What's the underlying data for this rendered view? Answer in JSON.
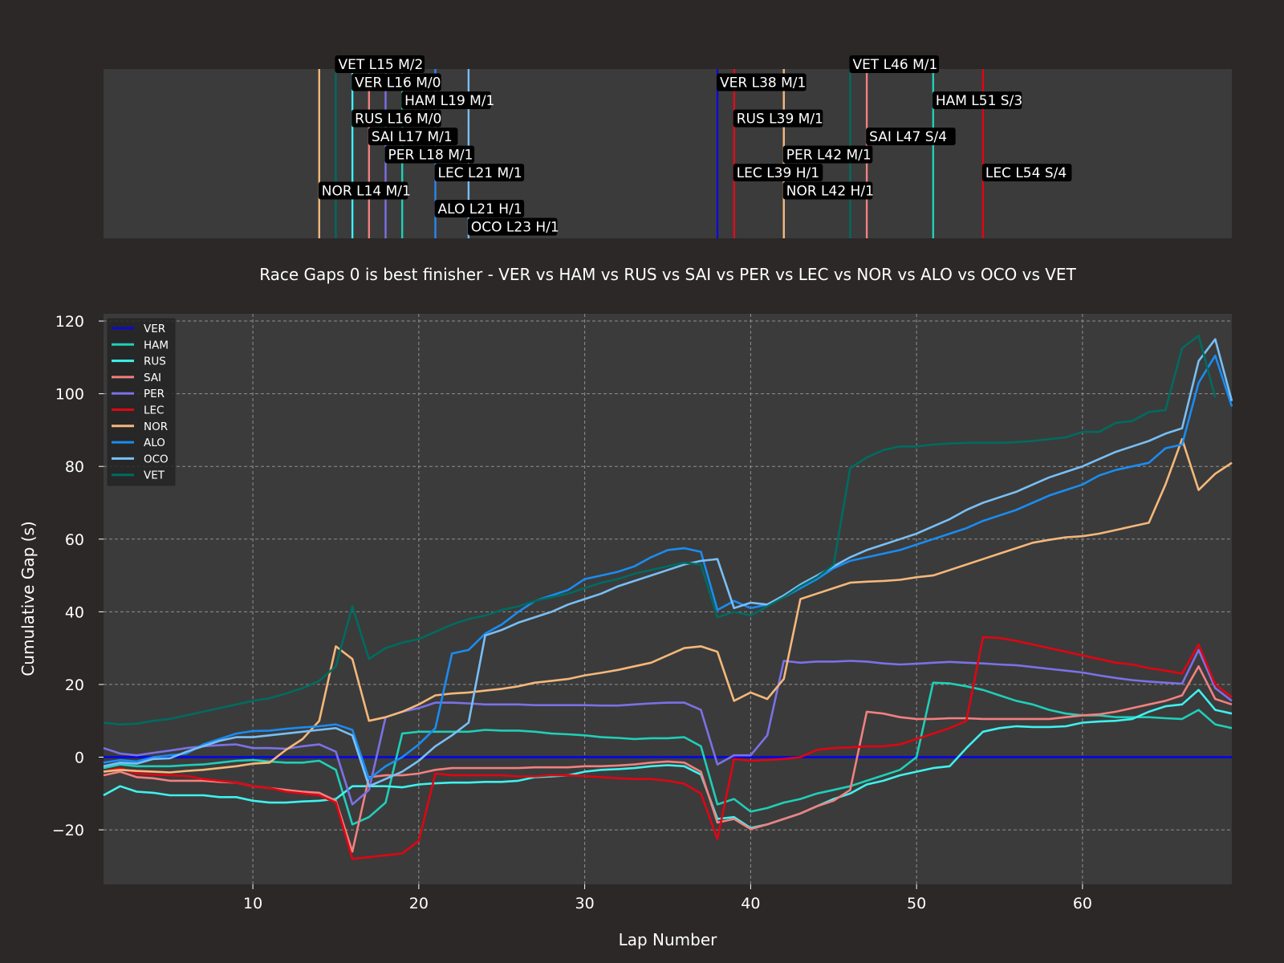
{
  "chart_data": [
    {
      "type": "timeline",
      "title": "",
      "xlim": [
        1,
        69
      ],
      "pit_stops": [
        {
          "driver": "NOR",
          "lap": 14,
          "label": "NOR L14 M/1",
          "row": 7
        },
        {
          "driver": "VET",
          "lap": 15,
          "label": "VET L15 M/2",
          "row": 0
        },
        {
          "driver": "VER",
          "lap": 16,
          "label": "VER L16 M/0",
          "row": 1
        },
        {
          "driver": "RUS",
          "lap": 16,
          "label": "RUS L16 M/0",
          "row": 3
        },
        {
          "driver": "SAI",
          "lap": 17,
          "label": "SAI L17 M/1",
          "row": 4
        },
        {
          "driver": "PER",
          "lap": 18,
          "label": "PER L18 M/1",
          "row": 5
        },
        {
          "driver": "HAM",
          "lap": 19,
          "label": "HAM L19 M/1",
          "row": 2
        },
        {
          "driver": "LEC",
          "lap": 21,
          "label": "LEC L21 M/1",
          "row": 6
        },
        {
          "driver": "ALO",
          "lap": 21,
          "label": "ALO L21 H/1",
          "row": 8
        },
        {
          "driver": "OCO",
          "lap": 23,
          "label": "OCO L23 H/1",
          "row": 9
        },
        {
          "driver": "VER",
          "lap": 38,
          "label": "VER L38 M/1",
          "row": 1
        },
        {
          "driver": "RUS",
          "lap": 39,
          "label": "RUS L39 M/1",
          "row": 3
        },
        {
          "driver": "LEC",
          "lap": 39,
          "label": "LEC L39 H/1",
          "row": 6
        },
        {
          "driver": "PER",
          "lap": 42,
          "label": "PER L42 M/1",
          "row": 5
        },
        {
          "driver": "NOR",
          "lap": 42,
          "label": "NOR L42 H/1",
          "row": 7
        },
        {
          "driver": "VET",
          "lap": 46,
          "label": "VET L46 M/1",
          "row": 0
        },
        {
          "driver": "SAI",
          "lap": 47,
          "label": "SAI L47 S/4",
          "row": 4
        },
        {
          "driver": "HAM",
          "lap": 51,
          "label": "HAM L51 S/3",
          "row": 2
        },
        {
          "driver": "LEC",
          "lap": 54,
          "label": "LEC L54 S/4",
          "row": 6
        }
      ]
    },
    {
      "type": "line",
      "title": "Race Gaps 0 is best finisher - VER vs HAM vs RUS vs SAI vs PER vs LEC vs NOR vs ALO vs OCO vs VET",
      "xlabel": "Lap Number",
      "ylabel": "Cumulative Gap (s)",
      "xlim": [
        1,
        69
      ],
      "ylim": [
        -35,
        122
      ],
      "xticks": [
        10,
        20,
        30,
        40,
        50,
        60
      ],
      "yticks": [
        -20,
        0,
        20,
        40,
        60,
        80,
        100,
        120
      ],
      "grid": true,
      "legend": "top-left",
      "series": [
        {
          "name": "VER",
          "color": "#0a0ad6",
          "values": [
            0,
            0,
            0,
            0,
            0,
            0,
            0,
            0,
            0,
            0,
            0,
            0,
            0,
            0,
            0,
            0,
            0,
            0,
            0,
            0,
            0,
            0,
            0,
            0,
            0,
            0,
            0,
            0,
            0,
            0,
            0,
            0,
            0,
            0,
            0,
            0,
            0,
            0,
            0,
            0,
            0,
            0,
            0,
            0,
            0,
            0,
            0,
            0,
            0,
            0,
            0,
            0,
            0,
            0,
            0,
            0,
            0,
            0,
            0,
            0,
            0,
            0,
            0,
            0,
            0,
            0,
            0,
            0,
            0
          ]
        },
        {
          "name": "HAM",
          "color": "#1fcfb8",
          "values": [
            -3,
            -2,
            -2.5,
            -2.5,
            -2.5,
            -2.2,
            -2,
            -1.5,
            -1,
            -0.8,
            -1.2,
            -1.5,
            -1.5,
            -1,
            -3.5,
            -18.5,
            -16.5,
            -12.5,
            6.5,
            7,
            7,
            7,
            7,
            7.5,
            7.3,
            7.3,
            7,
            6.5,
            6.3,
            6,
            5.5,
            5.3,
            5,
            5.2,
            5.2,
            5.5,
            3,
            -13,
            -11.5,
            -15,
            -14,
            -12.5,
            -11.5,
            -10,
            -9,
            -8,
            -6.5,
            -5,
            -3.5,
            0,
            20.5,
            20.3,
            19.5,
            18.5,
            17,
            15.5,
            14.5,
            13,
            12,
            11.5,
            11.5,
            11,
            11,
            11,
            10.7,
            10.5,
            13,
            9,
            8
          ]
        },
        {
          "name": "RUS",
          "color": "#3ef2ee",
          "values": [
            -10.5,
            -8,
            -9.5,
            -9.8,
            -10.5,
            -10.5,
            -10.5,
            -11,
            -11,
            -12,
            -12.5,
            -12.5,
            -12.2,
            -12,
            -11.5,
            -8,
            -8,
            -8,
            -8.3,
            -7.5,
            -7.2,
            -7,
            -7,
            -6.8,
            -6.8,
            -6.5,
            -5.5,
            -5.3,
            -5,
            -4,
            -3.5,
            -3.3,
            -3,
            -2.5,
            -2.2,
            -2.5,
            -4.8,
            -17,
            -16.5,
            -19.5,
            -18.5,
            -17,
            -15.5,
            -13.5,
            -11.5,
            -10,
            -7.5,
            -6.5,
            -5,
            -4,
            -3,
            -2.5,
            2.5,
            7,
            8,
            8.5,
            8.3,
            8.3,
            8.5,
            9.5,
            9.8,
            10,
            10.5,
            12.5,
            14,
            14.5,
            18.5,
            13,
            12
          ]
        },
        {
          "name": "SAI",
          "color": "#f28080",
          "values": [
            -5,
            -4,
            -5.5,
            -5.8,
            -6.5,
            -6.5,
            -6.5,
            -6.8,
            -7,
            -8,
            -8.5,
            -9,
            -9.5,
            -9.8,
            -12,
            -26,
            -5.5,
            -5,
            -5,
            -4.5,
            -3.5,
            -3,
            -3,
            -3,
            -3,
            -3,
            -2.8,
            -2.8,
            -2.8,
            -2.5,
            -2.5,
            -2.3,
            -2,
            -1.5,
            -1.2,
            -1.5,
            -4,
            -18,
            -17,
            -19.8,
            -18.5,
            -17,
            -15.5,
            -13.5,
            -12,
            -9,
            12.5,
            12,
            11,
            10.5,
            10.5,
            10.7,
            10.7,
            10.5,
            10.5,
            10.5,
            10.5,
            10.5,
            11,
            11.5,
            11.8,
            12.5,
            13.5,
            14.5,
            15.5,
            17,
            25,
            16,
            14.5
          ]
        },
        {
          "name": "PER",
          "color": "#7b71e6",
          "values": [
            2.5,
            1,
            0.5,
            1.2,
            1.8,
            2.5,
            3,
            3.3,
            3.5,
            2.5,
            2.5,
            2.3,
            3,
            3.5,
            1.5,
            -13,
            -9,
            11,
            12.5,
            13.5,
            15,
            15,
            14.8,
            14.5,
            14.5,
            14.5,
            14.3,
            14.3,
            14.3,
            14.3,
            14.2,
            14.2,
            14.5,
            14.8,
            15,
            15,
            13,
            -2,
            0.5,
            0.5,
            6,
            26.5,
            26,
            26.3,
            26.3,
            26.5,
            26.3,
            25.8,
            25.5,
            25.7,
            26,
            26.2,
            26,
            25.8,
            25.5,
            25.3,
            24.8,
            24.3,
            23.8,
            23.3,
            22.5,
            21.8,
            21.2,
            20.8,
            20.5,
            20.2,
            29.5,
            19,
            15.5
          ]
        },
        {
          "name": "LEC",
          "color": "#e10512",
          "values": [
            -4,
            -3,
            -4.5,
            -4.8,
            -5,
            -5.2,
            -6,
            -6.5,
            -7,
            -8,
            -8.5,
            -9.5,
            -10,
            -10.5,
            -12.5,
            -28,
            -27.5,
            -27,
            -26.5,
            -23,
            -4.5,
            -5,
            -5,
            -5,
            -5,
            -5.3,
            -5.3,
            -5,
            -5,
            -5.2,
            -5.5,
            -5.8,
            -6,
            -6,
            -6.5,
            -7.3,
            -10,
            -22.5,
            -0.5,
            -1,
            -0.8,
            -0.5,
            0,
            2,
            2.5,
            2.7,
            3,
            3,
            3.5,
            5,
            6.5,
            8,
            10,
            33,
            32.8,
            32,
            31,
            30,
            29,
            28,
            27,
            26,
            25.5,
            24.5,
            23.8,
            23,
            31,
            20,
            16.5
          ]
        },
        {
          "name": "NOR",
          "color": "#f5b87a",
          "values": [
            -4,
            -3.5,
            -3.8,
            -4,
            -4.2,
            -3.8,
            -3.5,
            -3,
            -2.5,
            -1.8,
            -1.5,
            2,
            5,
            10,
            30.5,
            27,
            10,
            11,
            12.5,
            14.5,
            17,
            17.5,
            17.8,
            18.3,
            18.8,
            19.5,
            20.5,
            21,
            21.5,
            22.5,
            23.2,
            24,
            25,
            26,
            28,
            30,
            30.5,
            29,
            15.5,
            17.8,
            16,
            21.5,
            43.5,
            45,
            46.5,
            48,
            48.3,
            48.5,
            48.8,
            49.5,
            50,
            51.5,
            53,
            54.5,
            56,
            57.5,
            59,
            59.8,
            60.5,
            60.8,
            61.5,
            62.5,
            63.5,
            64.5,
            75,
            87.5,
            73.5,
            78,
            81
          ]
        },
        {
          "name": "ALO",
          "color": "#1a8cf2",
          "values": [
            -1.5,
            -0.8,
            -1.2,
            0,
            0.5,
            1,
            3.5,
            5,
            6.5,
            7.2,
            7.3,
            7.8,
            8.2,
            8.5,
            9,
            7.5,
            -6,
            -2.5,
            0,
            3.5,
            8,
            28.5,
            29.5,
            34,
            36.5,
            40,
            43,
            44.5,
            46,
            49,
            50,
            51,
            52.5,
            55,
            57,
            57.5,
            56.5,
            40.5,
            43,
            41,
            42,
            44,
            46.5,
            49,
            52,
            54,
            55,
            56,
            57,
            58.5,
            60,
            61.5,
            63,
            65,
            66.5,
            68,
            70,
            72,
            73.5,
            75,
            77.5,
            79,
            80,
            81,
            85,
            86,
            103,
            110.5,
            96.5
          ]
        },
        {
          "name": "OCO",
          "color": "#79bff5",
          "values": [
            -2.5,
            -1.5,
            -1.8,
            -0.5,
            -0.3,
            1.5,
            3,
            4.5,
            5.5,
            5.5,
            6,
            6.5,
            7,
            7.5,
            8,
            6,
            -8,
            -6,
            -4,
            -1,
            3,
            6,
            9.5,
            33.5,
            35,
            37,
            38.5,
            40,
            42,
            43.5,
            45,
            47,
            48.5,
            50,
            51.5,
            53,
            54,
            54.5,
            41,
            42.5,
            42,
            44.5,
            47.5,
            50,
            52.5,
            55,
            57,
            58.5,
            60,
            61.5,
            63.5,
            65.5,
            68,
            70,
            71.5,
            73,
            75,
            77,
            78.5,
            80,
            82,
            84,
            85.5,
            87,
            89,
            90.5,
            109,
            115,
            98
          ]
        },
        {
          "name": "VET",
          "color": "#006b60",
          "values": [
            9.5,
            9,
            9.2,
            10,
            10.5,
            11.5,
            12.5,
            13.5,
            14.5,
            15.5,
            16.2,
            17.5,
            19,
            21,
            25,
            41.5,
            27,
            30,
            31.5,
            32.5,
            34.5,
            36.5,
            38,
            39,
            40.5,
            41.5,
            43,
            44,
            45,
            46.5,
            48,
            49,
            50.5,
            51.5,
            52.5,
            53.5,
            53,
            38.5,
            40,
            39,
            41.5,
            44,
            47,
            49.5,
            53,
            79.5,
            82.5,
            84.5,
            85.5,
            85.5,
            86,
            86.3,
            86.5,
            86.5,
            86.5,
            86.7,
            87,
            87.5,
            88,
            89.5,
            89.5,
            92,
            92.5,
            95,
            95.5,
            112.5,
            116,
            99
          ]
        }
      ]
    }
  ]
}
